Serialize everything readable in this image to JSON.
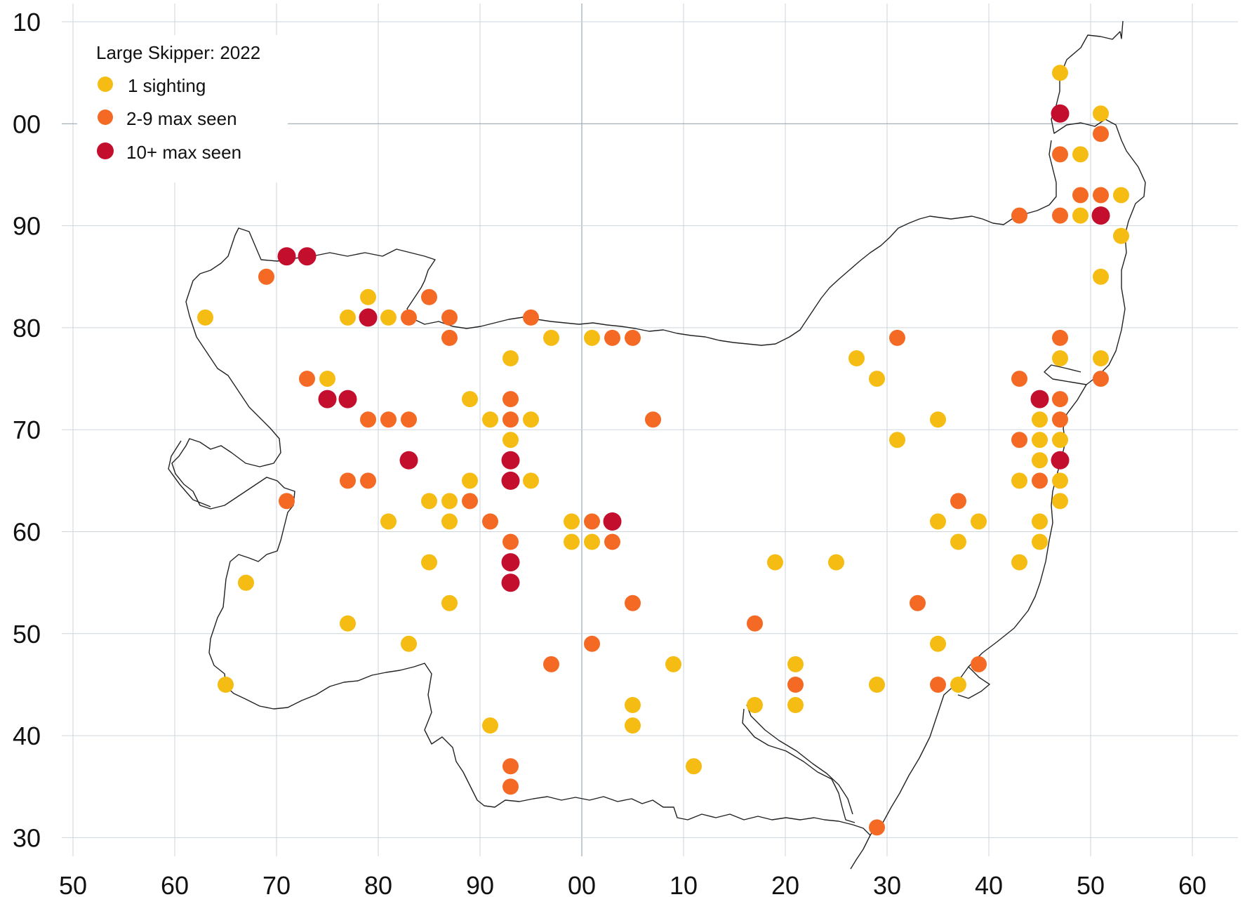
{
  "legend": {
    "title": "Large Skipper:  2022",
    "items": [
      {
        "label": "1 sighting",
        "color": "#f5bd14",
        "category": "one"
      },
      {
        "label": "2-9 max seen",
        "color": "#f46a25",
        "category": "few"
      },
      {
        "label": "10+ max seen",
        "color": "#c40e2e",
        "category": "many"
      }
    ]
  },
  "axes": {
    "x_tick_labels": [
      "50",
      "60",
      "70",
      "80",
      "90",
      "00",
      "10",
      "20",
      "30",
      "40",
      "50",
      "60"
    ],
    "y_tick_labels": [
      "10",
      "00",
      "90",
      "80",
      "70",
      "60",
      "50",
      "40",
      "30"
    ],
    "x_range": [
      50,
      160
    ],
    "y_range": [
      30,
      210
    ],
    "grid": true
  },
  "colors": {
    "one": "#f5bd14",
    "few": "#f46a25",
    "many": "#c40e2e"
  },
  "sightings": [
    {
      "e": 63,
      "n": 281,
      "c": "one"
    },
    {
      "e": 65,
      "n": 245,
      "c": "one"
    },
    {
      "e": 67,
      "n": 255,
      "c": "one"
    },
    {
      "e": 69,
      "n": 285,
      "c": "few"
    },
    {
      "e": 71,
      "n": 287,
      "c": "many"
    },
    {
      "e": 73,
      "n": 287,
      "c": "many"
    },
    {
      "e": 71,
      "n": 263,
      "c": "few"
    },
    {
      "e": 73,
      "n": 275,
      "c": "few"
    },
    {
      "e": 75,
      "n": 275,
      "c": "one"
    },
    {
      "e": 75,
      "n": 273,
      "c": "many"
    },
    {
      "e": 77,
      "n": 273,
      "c": "many"
    },
    {
      "e": 77,
      "n": 281,
      "c": "one"
    },
    {
      "e": 79,
      "n": 283,
      "c": "one"
    },
    {
      "e": 79,
      "n": 281,
      "c": "many"
    },
    {
      "e": 81,
      "n": 281,
      "c": "one"
    },
    {
      "e": 83,
      "n": 281,
      "c": "few"
    },
    {
      "e": 85,
      "n": 283,
      "c": "few"
    },
    {
      "e": 87,
      "n": 281,
      "c": "few"
    },
    {
      "e": 87,
      "n": 279,
      "c": "few"
    },
    {
      "e": 95,
      "n": 281,
      "c": "few"
    },
    {
      "e": 97,
      "n": 279,
      "c": "one"
    },
    {
      "e": 101,
      "n": 279,
      "c": "one"
    },
    {
      "e": 103,
      "n": 279,
      "c": "few"
    },
    {
      "e": 105,
      "n": 279,
      "c": "few"
    },
    {
      "e": 93,
      "n": 277,
      "c": "one"
    },
    {
      "e": 89,
      "n": 273,
      "c": "one"
    },
    {
      "e": 93,
      "n": 273,
      "c": "few"
    },
    {
      "e": 79,
      "n": 271,
      "c": "few"
    },
    {
      "e": 81,
      "n": 271,
      "c": "few"
    },
    {
      "e": 83,
      "n": 271,
      "c": "few"
    },
    {
      "e": 91,
      "n": 271,
      "c": "one"
    },
    {
      "e": 93,
      "n": 271,
      "c": "few"
    },
    {
      "e": 95,
      "n": 271,
      "c": "one"
    },
    {
      "e": 107,
      "n": 271,
      "c": "few"
    },
    {
      "e": 93,
      "n": 269,
      "c": "one"
    },
    {
      "e": 83,
      "n": 267,
      "c": "many"
    },
    {
      "e": 93,
      "n": 267,
      "c": "many"
    },
    {
      "e": 77,
      "n": 265,
      "c": "few"
    },
    {
      "e": 79,
      "n": 265,
      "c": "few"
    },
    {
      "e": 89,
      "n": 265,
      "c": "one"
    },
    {
      "e": 93,
      "n": 265,
      "c": "many"
    },
    {
      "e": 95,
      "n": 265,
      "c": "one"
    },
    {
      "e": 85,
      "n": 263,
      "c": "one"
    },
    {
      "e": 87,
      "n": 263,
      "c": "one"
    },
    {
      "e": 89,
      "n": 263,
      "c": "few"
    },
    {
      "e": 81,
      "n": 261,
      "c": "one"
    },
    {
      "e": 87,
      "n": 261,
      "c": "one"
    },
    {
      "e": 91,
      "n": 261,
      "c": "few"
    },
    {
      "e": 99,
      "n": 261,
      "c": "one"
    },
    {
      "e": 101,
      "n": 261,
      "c": "few"
    },
    {
      "e": 103,
      "n": 261,
      "c": "many"
    },
    {
      "e": 93,
      "n": 259,
      "c": "few"
    },
    {
      "e": 99,
      "n": 259,
      "c": "one"
    },
    {
      "e": 101,
      "n": 259,
      "c": "one"
    },
    {
      "e": 103,
      "n": 259,
      "c": "few"
    },
    {
      "e": 85,
      "n": 257,
      "c": "one"
    },
    {
      "e": 93,
      "n": 257,
      "c": "many"
    },
    {
      "e": 93,
      "n": 255,
      "c": "many"
    },
    {
      "e": 87,
      "n": 253,
      "c": "one"
    },
    {
      "e": 105,
      "n": 253,
      "c": "few"
    },
    {
      "e": 77,
      "n": 251,
      "c": "one"
    },
    {
      "e": 83,
      "n": 249,
      "c": "one"
    },
    {
      "e": 101,
      "n": 249,
      "c": "few"
    },
    {
      "e": 97,
      "n": 247,
      "c": "few"
    },
    {
      "e": 109,
      "n": 247,
      "c": "one"
    },
    {
      "e": 105,
      "n": 243,
      "c": "one"
    },
    {
      "e": 105,
      "n": 241,
      "c": "one"
    },
    {
      "e": 91,
      "n": 241,
      "c": "one"
    },
    {
      "e": 93,
      "n": 237,
      "c": "few"
    },
    {
      "e": 93,
      "n": 235,
      "c": "few"
    },
    {
      "e": 111,
      "n": 237,
      "c": "one"
    },
    {
      "e": 117,
      "n": 251,
      "c": "few"
    },
    {
      "e": 117,
      "n": 243,
      "c": "one"
    },
    {
      "e": 119,
      "n": 257,
      "c": "one"
    },
    {
      "e": 121,
      "n": 247,
      "c": "one"
    },
    {
      "e": 121,
      "n": 245,
      "c": "few"
    },
    {
      "e": 121,
      "n": 243,
      "c": "one"
    },
    {
      "e": 125,
      "n": 257,
      "c": "one"
    },
    {
      "e": 127,
      "n": 277,
      "c": "one"
    },
    {
      "e": 129,
      "n": 275,
      "c": "one"
    },
    {
      "e": 131,
      "n": 279,
      "c": "few"
    },
    {
      "e": 131,
      "n": 269,
      "c": "one"
    },
    {
      "e": 129,
      "n": 245,
      "c": "one"
    },
    {
      "e": 129,
      "n": 231,
      "c": "few"
    },
    {
      "e": 133,
      "n": 253,
      "c": "few"
    },
    {
      "e": 135,
      "n": 271,
      "c": "one"
    },
    {
      "e": 135,
      "n": 261,
      "c": "one"
    },
    {
      "e": 135,
      "n": 249,
      "c": "one"
    },
    {
      "e": 135,
      "n": 245,
      "c": "few"
    },
    {
      "e": 137,
      "n": 263,
      "c": "few"
    },
    {
      "e": 137,
      "n": 259,
      "c": "one"
    },
    {
      "e": 137,
      "n": 245,
      "c": "one"
    },
    {
      "e": 139,
      "n": 261,
      "c": "one"
    },
    {
      "e": 139,
      "n": 247,
      "c": "few"
    },
    {
      "e": 143,
      "n": 291,
      "c": "few"
    },
    {
      "e": 143,
      "n": 275,
      "c": "few"
    },
    {
      "e": 143,
      "n": 269,
      "c": "few"
    },
    {
      "e": 143,
      "n": 265,
      "c": "one"
    },
    {
      "e": 143,
      "n": 257,
      "c": "one"
    },
    {
      "e": 145,
      "n": 273,
      "c": "many"
    },
    {
      "e": 145,
      "n": 271,
      "c": "one"
    },
    {
      "e": 145,
      "n": 269,
      "c": "one"
    },
    {
      "e": 145,
      "n": 267,
      "c": "one"
    },
    {
      "e": 145,
      "n": 265,
      "c": "few"
    },
    {
      "e": 145,
      "n": 261,
      "c": "one"
    },
    {
      "e": 145,
      "n": 259,
      "c": "one"
    },
    {
      "e": 147,
      "n": 305,
      "c": "one"
    },
    {
      "e": 147,
      "n": 301,
      "c": "many"
    },
    {
      "e": 147,
      "n": 297,
      "c": "few"
    },
    {
      "e": 147,
      "n": 291,
      "c": "few"
    },
    {
      "e": 147,
      "n": 279,
      "c": "few"
    },
    {
      "e": 147,
      "n": 277,
      "c": "one"
    },
    {
      "e": 147,
      "n": 273,
      "c": "few"
    },
    {
      "e": 147,
      "n": 271,
      "c": "few"
    },
    {
      "e": 147,
      "n": 269,
      "c": "one"
    },
    {
      "e": 147,
      "n": 267,
      "c": "many"
    },
    {
      "e": 147,
      "n": 265,
      "c": "one"
    },
    {
      "e": 147,
      "n": 263,
      "c": "one"
    },
    {
      "e": 149,
      "n": 297,
      "c": "one"
    },
    {
      "e": 149,
      "n": 293,
      "c": "few"
    },
    {
      "e": 149,
      "n": 291,
      "c": "one"
    },
    {
      "e": 151,
      "n": 301,
      "c": "one"
    },
    {
      "e": 151,
      "n": 299,
      "c": "few"
    },
    {
      "e": 151,
      "n": 293,
      "c": "few"
    },
    {
      "e": 151,
      "n": 291,
      "c": "many"
    },
    {
      "e": 151,
      "n": 285,
      "c": "one"
    },
    {
      "e": 151,
      "n": 277,
      "c": "one"
    },
    {
      "e": 151,
      "n": 275,
      "c": "few"
    },
    {
      "e": 153,
      "n": 293,
      "c": "one"
    },
    {
      "e": 153,
      "n": 289,
      "c": "one"
    }
  ]
}
